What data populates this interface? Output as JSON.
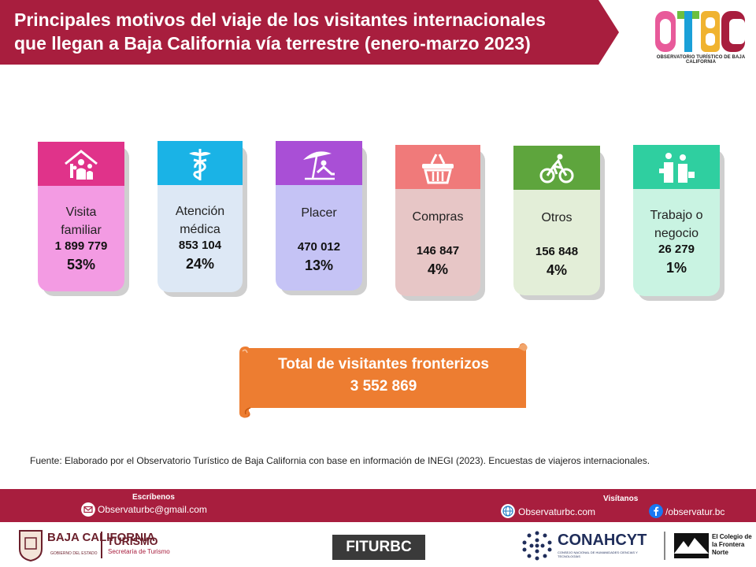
{
  "header": {
    "title": "Principales motivos del viaje de los visitantes internacionales que llegan a Baja California vía terrestre (enero-marzo 2023)",
    "logo_text": "OBSERVATORIO TURÍSTICO DE BAJA CALIFORNIA"
  },
  "chart_data": {
    "type": "table",
    "title": "Principales motivos del viaje de los visitantes internacionales que llegan a Baja California vía terrestre (enero-marzo 2023)",
    "categories": [
      "Visita familiar",
      "Atención médica",
      "Placer",
      "Compras",
      "Otros",
      "Trabajo o negocio"
    ],
    "values": [
      1899779,
      853104,
      470012,
      146847,
      156848,
      26279
    ],
    "percentages": [
      53,
      24,
      13,
      4,
      4,
      1
    ],
    "cards": [
      {
        "label": "Visita familiar",
        "value": "1 899 779",
        "pct": "53%",
        "icon": "family-home-icon",
        "head_color": "#e0338a",
        "body_color": "#f39be3"
      },
      {
        "label": "Atención médica",
        "value": "853 104",
        "pct": "24%",
        "icon": "caduceus-icon",
        "head_color": "#1ab3e6",
        "body_color": "#dde8f5"
      },
      {
        "label": "Placer",
        "value": "470 012",
        "pct": "13%",
        "icon": "beach-umbrella-icon",
        "head_color": "#a94fd6",
        "body_color": "#c5c3f5"
      },
      {
        "label": "Compras",
        "value": "146 847",
        "pct": "4%",
        "icon": "shopping-basket-icon",
        "head_color": "#f07a7a",
        "body_color": "#e7c6c6"
      },
      {
        "label": "Otros",
        "value": "156 848",
        "pct": "4%",
        "icon": "cyclist-icon",
        "head_color": "#5ea53d",
        "body_color": "#e3eed8"
      },
      {
        "label": "Trabajo o negocio",
        "value": "26 279",
        "pct": "1%",
        "icon": "business-people-icon",
        "head_color": "#2fcfa0",
        "body_color": "#c9f3e2"
      }
    ]
  },
  "total": {
    "label": "Total de visitantes fronterizos",
    "value": "3 552 869",
    "color": "#ed7d31"
  },
  "source": "Fuente: Elaborado por el Observatorio Turístico de Baja California con base en información de INEGI (2023). Encuestas de viajeros internacionales.",
  "footer": {
    "write_heading": "Escríbenos",
    "email": "Observaturbc@gmail.com",
    "visit_heading": "Visítanos",
    "website": "Observaturbc.com",
    "facebook": "/observatur.bc"
  },
  "logos": {
    "baja_california": "BAJA CALIFORNIA",
    "gobierno": "GOBIERNO DEL ESTADO",
    "turismo": "TURISMO",
    "secretaria": "Secretaría de Turismo",
    "fitur": "FITURBC",
    "conahcyt": "CONAHCYT",
    "conahcyt_sub": "CONSEJO NACIONAL DE HUMANIDADES CIENCIAS Y TECNOLOGÍAS",
    "colef": "El Colegio de la Frontera Norte"
  }
}
